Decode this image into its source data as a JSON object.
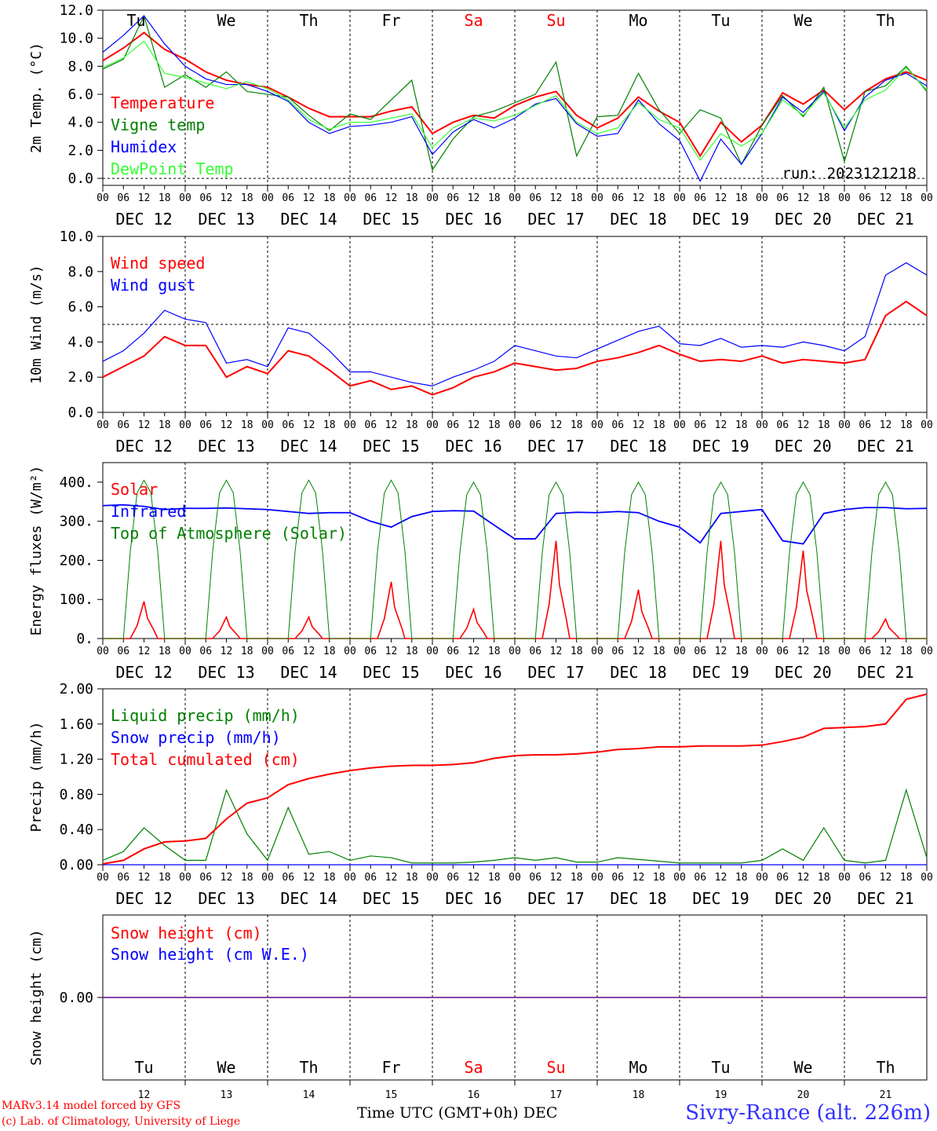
{
  "footer": {
    "credit1": "MARv3.14 model forced by GFS",
    "credit2": "(c) Lab. of Climatology, University of Liege",
    "xtitle": "Time UTC (GMT+0h) DEC",
    "site": "Sivry-Rance (alt. 226m)"
  },
  "run_label": "run: 2023121218",
  "weekdays": [
    {
      "label": "Tu",
      "color": "#000000"
    },
    {
      "label": "We",
      "color": "#000000"
    },
    {
      "label": "Th",
      "color": "#000000"
    },
    {
      "label": "Fr",
      "color": "#000000"
    },
    {
      "label": "Sa",
      "color": "#ff0000"
    },
    {
      "label": "Su",
      "color": "#ff0000"
    },
    {
      "label": "Mo",
      "color": "#000000"
    },
    {
      "label": "Tu",
      "color": "#000000"
    },
    {
      "label": "We",
      "color": "#000000"
    },
    {
      "label": "Th",
      "color": "#000000"
    }
  ],
  "dates": [
    "DEC 12",
    "DEC 13",
    "DEC 14",
    "DEC 15",
    "DEC 16",
    "DEC 17",
    "DEC 18",
    "DEC 19",
    "DEC 20",
    "DEC 21"
  ],
  "day_numbers": [
    "12",
    "13",
    "14",
    "15",
    "16",
    "17",
    "18",
    "19",
    "20",
    "21"
  ],
  "hour_ticks": [
    "00",
    "06",
    "12",
    "18"
  ],
  "chart_data": [
    {
      "type": "line",
      "ylabel": "2m Temp. (°C)",
      "ylim": [
        -0.5,
        12.0
      ],
      "yticks": [
        "0.0",
        "2.0",
        "4.0",
        "6.0",
        "8.0",
        "10.0",
        "12.0"
      ],
      "ytick_values": [
        0,
        2,
        4,
        6,
        8,
        10,
        12
      ],
      "dashed_ref": 0.0,
      "x_hours": [
        0,
        6,
        12,
        18,
        24,
        30,
        36,
        42,
        48,
        54,
        60,
        66,
        72,
        78,
        84,
        90,
        96,
        102,
        108,
        114,
        120,
        126,
        132,
        138,
        144,
        150,
        156,
        162,
        168,
        174,
        180,
        186,
        192,
        198,
        204,
        210,
        216,
        222,
        228,
        234,
        240
      ],
      "series": [
        {
          "name": "Temperature",
          "color": "#ff0000",
          "values": [
            8.4,
            9.3,
            10.4,
            9.2,
            8.5,
            7.6,
            7.0,
            6.7,
            6.5,
            5.8,
            5.0,
            4.4,
            4.4,
            4.4,
            4.8,
            5.1,
            3.2,
            4.0,
            4.5,
            4.3,
            5.2,
            5.8,
            6.2,
            4.5,
            3.6,
            4.3,
            5.8,
            4.8,
            4.0,
            1.6,
            4.0,
            2.6,
            3.8,
            6.1,
            5.3,
            6.3,
            4.9,
            6.2,
            7.1,
            7.6,
            7.0
          ]
        },
        {
          "name": "Vigne temp",
          "color": "#008000",
          "values": [
            7.8,
            8.5,
            11.6,
            6.5,
            7.4,
            6.5,
            7.6,
            6.2,
            6.0,
            5.8,
            4.5,
            3.4,
            4.6,
            4.2,
            5.6,
            7.0,
            0.6,
            2.8,
            4.4,
            4.8,
            5.4,
            6.0,
            8.3,
            1.6,
            4.4,
            4.5,
            7.5,
            4.9,
            3.2,
            4.9,
            4.3,
            1.0,
            3.8,
            5.9,
            4.4,
            6.5,
            1.2,
            6.2,
            6.6,
            8.0,
            6.2
          ]
        },
        {
          "name": "Humidex",
          "color": "#0000ff",
          "values": [
            9.0,
            10.2,
            11.6,
            9.6,
            8.0,
            7.1,
            6.7,
            6.7,
            6.2,
            5.5,
            4.0,
            3.2,
            3.7,
            3.8,
            4.0,
            4.4,
            1.7,
            3.3,
            4.2,
            3.6,
            4.3,
            5.3,
            5.7,
            3.9,
            3.0,
            3.2,
            5.6,
            3.9,
            2.7,
            -0.2,
            2.8,
            1.0,
            3.2,
            5.8,
            4.7,
            6.2,
            3.4,
            5.8,
            7.0,
            7.5,
            6.6
          ]
        },
        {
          "name": "DewPoint Temp",
          "color": "#33ff33",
          "values": [
            7.9,
            8.6,
            9.8,
            7.5,
            7.2,
            6.8,
            6.4,
            6.9,
            6.4,
            5.6,
            4.2,
            3.5,
            4.0,
            4.0,
            4.3,
            4.6,
            2.2,
            3.6,
            4.3,
            4.1,
            4.5,
            5.2,
            5.9,
            4.0,
            3.2,
            3.6,
            5.4,
            4.2,
            3.6,
            1.3,
            3.2,
            2.3,
            3.2,
            5.6,
            4.5,
            6.1,
            3.6,
            5.6,
            6.3,
            7.9,
            6.3
          ]
        }
      ]
    },
    {
      "type": "line",
      "ylabel": "10m Wind (m/s)",
      "ylim": [
        0.0,
        10.0
      ],
      "yticks": [
        "0.0",
        "2.0",
        "4.0",
        "6.0",
        "8.0",
        "10.0"
      ],
      "ytick_values": [
        0,
        2,
        4,
        6,
        8,
        10
      ],
      "dashed_ref": 5.0,
      "x_hours": [
        0,
        6,
        12,
        18,
        24,
        30,
        36,
        42,
        48,
        54,
        60,
        66,
        72,
        78,
        84,
        90,
        96,
        102,
        108,
        114,
        120,
        126,
        132,
        138,
        144,
        150,
        156,
        162,
        168,
        174,
        180,
        186,
        192,
        198,
        204,
        210,
        216,
        222,
        228,
        234,
        240
      ],
      "series": [
        {
          "name": "Wind speed",
          "color": "#ff0000",
          "values": [
            2.0,
            2.6,
            3.2,
            4.3,
            3.8,
            3.8,
            2.0,
            2.6,
            2.2,
            3.5,
            3.2,
            2.4,
            1.5,
            1.8,
            1.3,
            1.5,
            1.0,
            1.4,
            2.0,
            2.3,
            2.8,
            2.6,
            2.4,
            2.5,
            2.9,
            3.1,
            3.4,
            3.8,
            3.3,
            2.9,
            3.0,
            2.9,
            3.2,
            2.8,
            3.0,
            2.9,
            2.8,
            3.0,
            5.5,
            6.3,
            5.5
          ]
        },
        {
          "name": "Wind gust",
          "color": "#0000ff",
          "values": [
            2.9,
            3.5,
            4.5,
            5.8,
            5.3,
            5.1,
            2.8,
            3.0,
            2.6,
            4.8,
            4.5,
            3.5,
            2.3,
            2.3,
            2.0,
            1.7,
            1.5,
            2.0,
            2.4,
            2.9,
            3.8,
            3.5,
            3.2,
            3.1,
            3.6,
            4.1,
            4.6,
            4.9,
            3.9,
            3.8,
            4.2,
            3.7,
            3.8,
            3.7,
            4.0,
            3.8,
            3.5,
            4.3,
            7.8,
            8.5,
            7.8
          ]
        }
      ]
    },
    {
      "type": "line",
      "ylabel": "Energy fluxes (W/m²)",
      "ylim": [
        0,
        450
      ],
      "yticks": [
        "0.",
        "100.",
        "200.",
        "300.",
        "400."
      ],
      "ytick_values": [
        0,
        100,
        200,
        300,
        400
      ],
      "series": [
        {
          "name": "Solar",
          "color": "#ff0000",
          "daily_peak": [
            95,
            55,
            55,
            145,
            75,
            250,
            125,
            250,
            225,
            50
          ]
        },
        {
          "name": "Infrared",
          "color": "#0000ff",
          "values": [
            340,
            342,
            338,
            330,
            333,
            333,
            334,
            332,
            330,
            325,
            320,
            322,
            322,
            300,
            285,
            312,
            325,
            327,
            326,
            290,
            255,
            255,
            320,
            323,
            322,
            325,
            322,
            300,
            285,
            245,
            320,
            325,
            330,
            250,
            242,
            320,
            330,
            335,
            335,
            332,
            333
          ]
        },
        {
          "name": "Top of Atmosphere (Solar)",
          "color": "#008000",
          "daily_peak": [
            405,
            405,
            405,
            405,
            400,
            400,
            400,
            400,
            400,
            400
          ]
        }
      ],
      "x_hours": [
        0,
        6,
        12,
        18,
        24,
        30,
        36,
        42,
        48,
        54,
        60,
        66,
        72,
        78,
        84,
        90,
        96,
        102,
        108,
        114,
        120,
        126,
        132,
        138,
        144,
        150,
        156,
        162,
        168,
        174,
        180,
        186,
        192,
        198,
        204,
        210,
        216,
        222,
        228,
        234,
        240
      ]
    },
    {
      "type": "line",
      "ylabel": "Precip (mm/h)",
      "ylim": [
        0.0,
        2.0
      ],
      "yticks": [
        "0.00",
        "0.40",
        "0.80",
        "1.20",
        "1.60",
        "2.00"
      ],
      "ytick_values": [
        0,
        0.4,
        0.8,
        1.2,
        1.6,
        2.0
      ],
      "x_hours": [
        0,
        6,
        12,
        18,
        24,
        30,
        36,
        42,
        48,
        54,
        60,
        66,
        72,
        78,
        84,
        90,
        96,
        102,
        108,
        114,
        120,
        126,
        132,
        138,
        144,
        150,
        156,
        162,
        168,
        174,
        180,
        186,
        192,
        198,
        204,
        210,
        216,
        222,
        228,
        234,
        240
      ],
      "series": [
        {
          "name": "Liquid precip (mm/h)",
          "color": "#008000",
          "values": [
            0.05,
            0.15,
            0.42,
            0.22,
            0.05,
            0.05,
            0.85,
            0.35,
            0.05,
            0.65,
            0.12,
            0.15,
            0.05,
            0.1,
            0.08,
            0.02,
            0.02,
            0.02,
            0.03,
            0.05,
            0.08,
            0.05,
            0.08,
            0.03,
            0.03,
            0.08,
            0.06,
            0.04,
            0.02,
            0.02,
            0.02,
            0.02,
            0.05,
            0.18,
            0.05,
            0.42,
            0.05,
            0.02,
            0.05,
            0.85,
            0.08
          ]
        },
        {
          "name": "Snow precip (mm/h)",
          "color": "#0000ff",
          "values": [
            0.0,
            0.0,
            0.0,
            0.0,
            0.0,
            0.0,
            0.0,
            0.0,
            0.0,
            0.0,
            0.0,
            0.0,
            0.0,
            0.0,
            0.0,
            0.0,
            0.0,
            0.0,
            0.0,
            0.0,
            0.0,
            0.0,
            0.0,
            0.0,
            0.0,
            0.0,
            0.0,
            0.0,
            0.0,
            0.0,
            0.0,
            0.0,
            0.0,
            0.0,
            0.0,
            0.0,
            0.0,
            0.0,
            0.0,
            0.0,
            0.0
          ]
        },
        {
          "name": "Total cumulated (cm)",
          "color": "#ff0000",
          "values": [
            0.01,
            0.05,
            0.18,
            0.26,
            0.27,
            0.3,
            0.52,
            0.7,
            0.76,
            0.91,
            0.98,
            1.03,
            1.07,
            1.1,
            1.12,
            1.13,
            1.13,
            1.14,
            1.16,
            1.21,
            1.24,
            1.25,
            1.25,
            1.26,
            1.28,
            1.31,
            1.32,
            1.34,
            1.34,
            1.35,
            1.35,
            1.35,
            1.36,
            1.4,
            1.45,
            1.55,
            1.56,
            1.57,
            1.6,
            1.88,
            1.94
          ]
        }
      ]
    },
    {
      "type": "line",
      "ylabel": "Snow height (cm)",
      "ylim": [
        -1.0,
        1.0
      ],
      "yticks": [
        "0.00"
      ],
      "ytick_values": [
        0
      ],
      "x_hours": [
        0,
        240
      ],
      "series": [
        {
          "name": "Snow height (cm)",
          "color": "#ff0000",
          "values": [
            0.0,
            0.0
          ]
        },
        {
          "name": "Snow height (cm W.E.)",
          "color": "#0000ff",
          "values": [
            0.0,
            0.0
          ]
        }
      ]
    }
  ]
}
